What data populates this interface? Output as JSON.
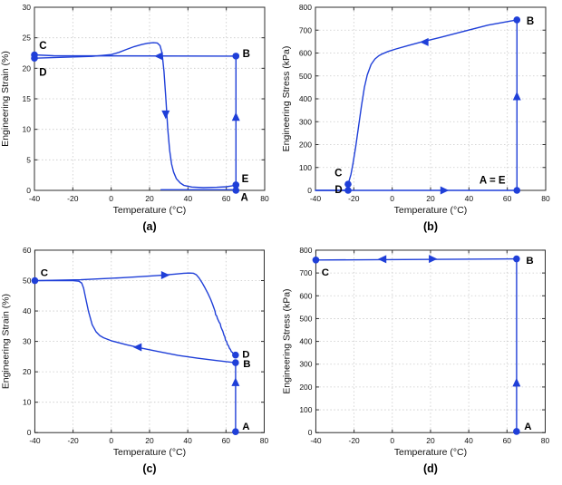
{
  "figure": {
    "background": "#ffffff",
    "line_color": "#1f3fd8",
    "grid_color": "#c9c9c9",
    "axis_color": "#2e2e2e",
    "text_color": "#111111"
  },
  "chart_data": [
    {
      "id": "a",
      "type": "line",
      "caption": "(a)",
      "xlabel": "Temperature (°C)",
      "ylabel": "Engineering Strain (%)",
      "xlim": [
        -40,
        80
      ],
      "ylim": [
        0,
        30
      ],
      "xticks": [
        -40,
        -20,
        0,
        20,
        40,
        60,
        80
      ],
      "yticks": [
        0,
        5,
        10,
        15,
        20,
        25,
        30
      ],
      "grid": true,
      "series": [
        {
          "name": "initial-heating",
          "points": [
            [
              26,
              0.1
            ],
            [
              65,
              0.1
            ]
          ]
        },
        {
          "name": "loading-A-B",
          "points": [
            [
              65,
              0.1
            ],
            [
              65,
              22
            ]
          ]
        },
        {
          "name": "cooling-B-C",
          "points": [
            [
              65,
              22
            ],
            [
              -30,
              22.05
            ],
            [
              -40,
              22.2
            ]
          ]
        },
        {
          "name": "unloading-C-D",
          "points": [
            [
              -40,
              22.2
            ],
            [
              -40,
              21.65
            ]
          ]
        },
        {
          "name": "heating-D-E",
          "points": [
            [
              -40,
              21.65
            ],
            [
              -25,
              21.8
            ],
            [
              -10,
              21.95
            ],
            [
              0,
              22.25
            ],
            [
              4,
              22.6
            ],
            [
              8,
              23.1
            ],
            [
              12,
              23.55
            ],
            [
              16,
              23.9
            ],
            [
              19,
              24.1
            ],
            [
              22,
              24.2
            ],
            [
              24,
              24.15
            ],
            [
              25.5,
              23.7
            ],
            [
              26.5,
              22.5
            ],
            [
              27.5,
              19.5
            ],
            [
              28.5,
              15
            ],
            [
              29.5,
              10
            ],
            [
              30.5,
              6.5
            ],
            [
              31.5,
              4.3
            ],
            [
              32.5,
              3.0
            ],
            [
              34,
              1.9
            ],
            [
              36,
              1.2
            ],
            [
              38,
              0.8
            ],
            [
              42,
              0.55
            ],
            [
              48,
              0.45
            ],
            [
              55,
              0.5
            ],
            [
              60,
              0.6
            ],
            [
              65,
              0.85
            ]
          ]
        }
      ],
      "arrows": [
        {
          "dir": "up",
          "x": 65,
          "y": 12
        },
        {
          "dir": "left",
          "x": 25,
          "y": 22
        },
        {
          "dir": "down",
          "x": 28.4,
          "y": 12.5
        }
      ],
      "markers": [
        {
          "point": "C",
          "x": -40,
          "y": 22.2
        },
        {
          "point": "D",
          "x": -40,
          "y": 21.65
        },
        {
          "point": "B",
          "x": 65,
          "y": 22
        },
        {
          "point": "E",
          "x": 65,
          "y": 0.9
        },
        {
          "point": "A",
          "x": 65,
          "y": 0
        }
      ],
      "point_labels": [
        {
          "text": "C",
          "x": -37.5,
          "y": 23.2,
          "anchor": "start"
        },
        {
          "text": "D",
          "x": -37.5,
          "y": 18.8,
          "anchor": "start"
        },
        {
          "text": "B",
          "x": 68.5,
          "y": 21.8,
          "anchor": "start"
        },
        {
          "text": "E",
          "x": 68,
          "y": 1.3,
          "anchor": "start"
        },
        {
          "text": "A",
          "x": 67.5,
          "y": -1.7,
          "anchor": "start"
        }
      ]
    },
    {
      "id": "b",
      "type": "line",
      "caption": "(b)",
      "xlabel": "Temperature (°C)",
      "ylabel": "Engineering Stress (kPa)",
      "xlim": [
        -40,
        80
      ],
      "ylim": [
        0,
        800
      ],
      "xticks": [
        -40,
        -20,
        0,
        20,
        40,
        60,
        80
      ],
      "yticks": [
        0,
        100,
        200,
        300,
        400,
        500,
        600,
        700,
        800
      ],
      "grid": true,
      "series": [
        {
          "name": "loading-A-B",
          "points": [
            [
              65,
              0
            ],
            [
              65,
              745
            ]
          ]
        },
        {
          "name": "cooling-B-C",
          "points": [
            [
              65,
              745
            ],
            [
              50,
              722
            ],
            [
              35,
              690
            ],
            [
              25,
              668
            ],
            [
              15,
              648
            ],
            [
              8,
              632
            ],
            [
              2,
              618
            ],
            [
              -2,
              607
            ],
            [
              -5,
              597
            ],
            [
              -7,
              588
            ],
            [
              -9,
              574
            ],
            [
              -11,
              550
            ],
            [
              -13,
              505
            ],
            [
              -14.5,
              450
            ],
            [
              -16,
              370
            ],
            [
              -17.5,
              280
            ],
            [
              -19,
              190
            ],
            [
              -20.5,
              115
            ],
            [
              -21.5,
              70
            ],
            [
              -22.5,
              40
            ],
            [
              -23,
              27
            ]
          ]
        },
        {
          "name": "unloading-C-D",
          "points": [
            [
              -23,
              27
            ],
            [
              -23,
              0
            ]
          ]
        },
        {
          "name": "cooling-D",
          "points": [
            [
              -23,
              0
            ],
            [
              -40,
              0
            ]
          ]
        },
        {
          "name": "heating-D-E",
          "points": [
            [
              -40,
              0
            ],
            [
              65,
              0
            ]
          ]
        }
      ],
      "arrows": [
        {
          "dir": "up",
          "x": 65,
          "y": 410
        },
        {
          "dir": "left",
          "x": 17,
          "y": 648
        },
        {
          "dir": "right",
          "x": 27,
          "y": 0
        }
      ],
      "markers": [
        {
          "point": "B",
          "x": 65,
          "y": 745
        },
        {
          "point": "C",
          "x": -23,
          "y": 27
        },
        {
          "point": "D",
          "x": -23,
          "y": 0
        },
        {
          "point": "A=E",
          "x": 65,
          "y": 0
        }
      ],
      "point_labels": [
        {
          "text": "B",
          "x": 70,
          "y": 725,
          "anchor": "start"
        },
        {
          "text": "C",
          "x": -30,
          "y": 62,
          "anchor": "start"
        },
        {
          "text": "D",
          "x": -26,
          "y": -12,
          "anchor": "end"
        },
        {
          "text": "A = E",
          "x": 59,
          "y": 30,
          "anchor": "end"
        }
      ]
    },
    {
      "id": "c",
      "type": "line",
      "caption": "(c)",
      "xlabel": "Temperature (°C)",
      "ylabel": "Engineering Strain (%)",
      "xlim": [
        -40,
        80
      ],
      "ylim": [
        0,
        60
      ],
      "xticks": [
        -40,
        -20,
        0,
        20,
        40,
        60,
        80
      ],
      "yticks": [
        0,
        10,
        20,
        30,
        40,
        50,
        60
      ],
      "grid": true,
      "series": [
        {
          "name": "loading-A-B",
          "points": [
            [
              65,
              0.3
            ],
            [
              65,
              23
            ]
          ]
        },
        {
          "name": "cooling-B-C",
          "points": [
            [
              65,
              23
            ],
            [
              55,
              23.7
            ],
            [
              45,
              24.5
            ],
            [
              35,
              25.4
            ],
            [
              25,
              26.6
            ],
            [
              15,
              27.9
            ],
            [
              8,
              28.9
            ],
            [
              0,
              30.2
            ],
            [
              -4,
              31.2
            ],
            [
              -6,
              31.9
            ],
            [
              -8,
              33.2
            ],
            [
              -10,
              35.5
            ],
            [
              -12,
              40
            ],
            [
              -13.5,
              44.5
            ],
            [
              -14.5,
              47.5
            ],
            [
              -15.5,
              49.2
            ],
            [
              -17,
              49.8
            ],
            [
              -20,
              50
            ],
            [
              -30,
              50
            ],
            [
              -40,
              50
            ]
          ]
        },
        {
          "name": "heating-C-D",
          "points": [
            [
              -40,
              50
            ],
            [
              -28,
              50.15
            ],
            [
              -16,
              50.3
            ],
            [
              -5,
              50.6
            ],
            [
              5,
              50.9
            ],
            [
              15,
              51.3
            ],
            [
              25,
              51.7
            ],
            [
              33,
              52.1
            ],
            [
              38,
              52.4
            ],
            [
              41,
              52.5
            ],
            [
              43,
              52.4
            ],
            [
              44.5,
              51.9
            ],
            [
              46,
              50.8
            ],
            [
              47.5,
              49.3
            ],
            [
              49,
              47.6
            ],
            [
              50.5,
              45.8
            ],
            [
              52,
              43.8
            ],
            [
              53,
              42.2
            ],
            [
              53.8,
              40.8
            ],
            [
              54.3,
              39.8
            ],
            [
              54.6,
              38.8
            ],
            [
              55.2,
              38.3
            ],
            [
              55.5,
              37.6
            ],
            [
              56.5,
              36.2
            ],
            [
              57,
              35.8
            ],
            [
              57.3,
              34.8
            ],
            [
              58,
              33.8
            ],
            [
              58.3,
              33.4
            ],
            [
              59,
              32
            ],
            [
              59.3,
              31.7
            ],
            [
              59.8,
              30.4
            ],
            [
              60.3,
              30
            ],
            [
              60.8,
              28.9
            ],
            [
              61.3,
              28.6
            ],
            [
              61.8,
              27.7
            ],
            [
              62.3,
              27.4
            ],
            [
              62.8,
              26.6
            ],
            [
              63.3,
              26.4
            ],
            [
              63.8,
              25.9
            ],
            [
              64.3,
              25.8
            ],
            [
              65,
              25.5
            ]
          ]
        }
      ],
      "arrows": [
        {
          "dir": "up",
          "x": 65,
          "y": 16.5
        },
        {
          "dir": "left",
          "x": 14,
          "y": 28.1
        },
        {
          "dir": "right",
          "x": 28,
          "y": 51.8
        }
      ],
      "markers": [
        {
          "point": "C",
          "x": -40,
          "y": 50
        },
        {
          "point": "D",
          "x": 65,
          "y": 25.5
        },
        {
          "point": "B",
          "x": 65,
          "y": 23
        },
        {
          "point": "A",
          "x": 65,
          "y": 0.3
        }
      ],
      "point_labels": [
        {
          "text": "C",
          "x": -37,
          "y": 51.5,
          "anchor": "start"
        },
        {
          "text": "D",
          "x": 68.5,
          "y": 24.6,
          "anchor": "start"
        },
        {
          "text": "B",
          "x": 69,
          "y": 21.6,
          "anchor": "start"
        },
        {
          "text": "A",
          "x": 68.5,
          "y": 1.0,
          "anchor": "start"
        }
      ]
    },
    {
      "id": "d",
      "type": "line",
      "caption": "(d)",
      "xlabel": "Temperature (°C)",
      "ylabel": "Engineering Stress (kPa)",
      "xlim": [
        -40,
        80
      ],
      "ylim": [
        0,
        800
      ],
      "xticks": [
        -40,
        -20,
        0,
        20,
        40,
        60,
        80
      ],
      "yticks": [
        0,
        100,
        200,
        300,
        400,
        500,
        600,
        700,
        800
      ],
      "grid": true,
      "series": [
        {
          "name": "loading-A-B",
          "points": [
            [
              65,
              5
            ],
            [
              65,
              762
            ]
          ]
        },
        {
          "name": "cooling-B-C-and-back",
          "points": [
            [
              65,
              762
            ],
            [
              -40,
              757
            ]
          ]
        }
      ],
      "arrows": [
        {
          "dir": "up",
          "x": 65,
          "y": 218
        },
        {
          "dir": "left",
          "x": -5,
          "y": 760.5
        },
        {
          "dir": "right",
          "x": 21,
          "y": 761.5
        }
      ],
      "markers": [
        {
          "point": "B",
          "x": 65,
          "y": 762
        },
        {
          "point": "C",
          "x": -40,
          "y": 757
        },
        {
          "point": "A",
          "x": 65,
          "y": 5
        }
      ],
      "point_labels": [
        {
          "text": "B",
          "x": 70,
          "y": 740,
          "anchor": "start"
        },
        {
          "text": "C",
          "x": -37,
          "y": 688,
          "anchor": "start"
        },
        {
          "text": "A",
          "x": 69,
          "y": 12,
          "anchor": "start"
        }
      ]
    }
  ]
}
